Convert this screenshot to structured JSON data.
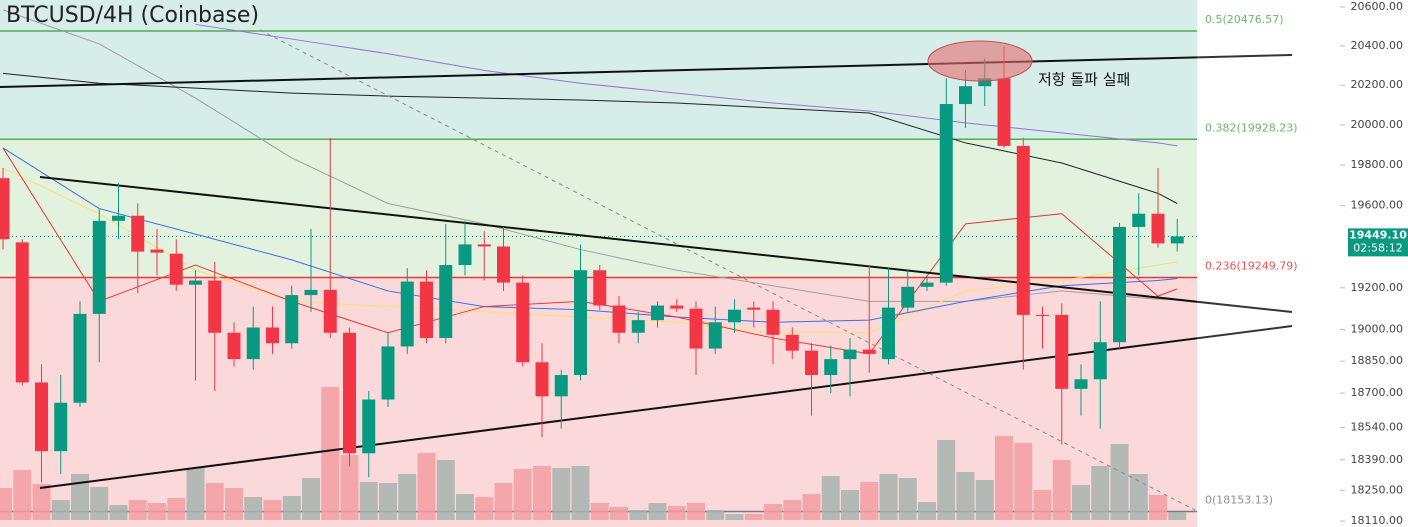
{
  "chart_data": {
    "type": "candlestick",
    "title": "BTCUSD/4H (Coinbase)",
    "annotation": "저항 돌파 실패",
    "log": true,
    "ylim": [
      18083,
      20636
    ],
    "yticks": [
      {
        "value": 20600,
        "label": "20600.00"
      },
      {
        "value": 20400,
        "label": "20400.00"
      },
      {
        "value": 20200,
        "label": "20200.00"
      },
      {
        "value": 20000,
        "label": "20000.00"
      },
      {
        "value": 19800,
        "label": "19800.00"
      },
      {
        "value": 19600,
        "label": "19600.00"
      },
      {
        "value": 19200,
        "label": "19200.00"
      },
      {
        "value": 19000,
        "label": "19000.00"
      },
      {
        "value": 18850,
        "label": "18850.00"
      },
      {
        "value": 18700,
        "label": "18700.00"
      },
      {
        "value": 18540,
        "label": "18540.00"
      },
      {
        "value": 18390,
        "label": "18390.00"
      },
      {
        "value": 18250,
        "label": "18250.00"
      },
      {
        "value": 18110,
        "label": "18110.00"
      }
    ],
    "up_color": "#089981",
    "down_color": "#f23645",
    "last_price": {
      "value": 19449.1,
      "label": "19449.10"
    },
    "countdown": "02:58:12",
    "fib_levels": [
      {
        "value": 20476.57,
        "label": "0.5(20476.57)",
        "color": "#4caf50",
        "band": "#d6ede9"
      },
      {
        "value": 19928.23,
        "label": "0.382(19928.23)",
        "color": "#4caf50",
        "band": "#e3f2df"
      },
      {
        "value": 19249.79,
        "label": "0.236(19249.79)",
        "color": "#e53935",
        "band": "#e3f2df"
      },
      {
        "value": 18153.13,
        "label": "0(18153.13)",
        "color": "#787b86",
        "band": "#fbd9da"
      }
    ],
    "open": [
      19735,
      19420,
      18750,
      18430,
      18655,
      19075,
      19525,
      19550,
      19385,
      19365,
      19215,
      19235,
      18985,
      18860,
      19010,
      18935,
      19165,
      19190,
      18985,
      18420,
      18670,
      18920,
      19230,
      18960,
      19310,
      19410,
      19400,
      19225,
      18845,
      18685,
      18785,
      19285,
      19115,
      18985,
      19045,
      19115,
      19100,
      18910,
      19035,
      19105,
      19095,
      18975,
      18900,
      18785,
      18860,
      18905,
      18860,
      19105,
      19205,
      19225,
      20105,
      20195,
      20235,
      19895,
      19070,
      19070,
      18720,
      18765,
      18940,
      19495,
      19560,
      19415
    ],
    "high": [
      19785,
      19435,
      18835,
      18785,
      19135,
      19585,
      19710,
      19610,
      19485,
      19435,
      19285,
      19325,
      19035,
      19110,
      19110,
      19210,
      19485,
      19935,
      19010,
      18710,
      18985,
      19295,
      19285,
      19510,
      19525,
      19475,
      19495,
      19260,
      18935,
      18810,
      19410,
      19310,
      19160,
      19085,
      19135,
      19145,
      19135,
      19110,
      19145,
      19135,
      19135,
      19010,
      18935,
      18925,
      18960,
      19310,
      19295,
      19285,
      19260,
      20235,
      20275,
      20335,
      20395,
      19935,
      19110,
      19125,
      18835,
      19135,
      19515,
      19660,
      19785,
      19535
    ],
    "low": [
      19385,
      18735,
      18285,
      18325,
      18635,
      18845,
      19435,
      19175,
      19260,
      19185,
      18760,
      18710,
      18825,
      18810,
      18885,
      18910,
      19085,
      18960,
      18360,
      18310,
      18635,
      18885,
      18935,
      18935,
      19260,
      19235,
      19185,
      18825,
      18495,
      18535,
      18760,
      19095,
      18935,
      18935,
      19010,
      19085,
      18785,
      18885,
      18985,
      19010,
      18835,
      18860,
      18595,
      18700,
      18685,
      18795,
      18835,
      19085,
      19185,
      19210,
      19985,
      20095,
      19885,
      18810,
      18910,
      18460,
      18595,
      18535,
      18910,
      19260,
      19395,
      19375
    ],
    "close": [
      19435,
      18750,
      18430,
      18655,
      19075,
      19525,
      19550,
      19375,
      19370,
      19215,
      19235,
      18985,
      18860,
      19010,
      18935,
      19165,
      19190,
      18985,
      18420,
      18670,
      18920,
      19230,
      18960,
      19310,
      19410,
      19400,
      19225,
      18845,
      18685,
      18785,
      19285,
      19115,
      18985,
      19045,
      19115,
      19100,
      18910,
      19035,
      19095,
      19095,
      18975,
      18900,
      18785,
      18860,
      18905,
      18885,
      19105,
      19205,
      19225,
      20105,
      20195,
      20235,
      19895,
      19070,
      19065,
      18720,
      18765,
      18940,
      19495,
      19560,
      19415,
      19449.1
    ],
    "volume": [
      32,
      50,
      36,
      20,
      46,
      33,
      15,
      20,
      17,
      22,
      52,
      37,
      32,
      23,
      20,
      24,
      42,
      133,
      65,
      38,
      37,
      46,
      67,
      60,
      26,
      23,
      37,
      51,
      54,
      52,
      54,
      17,
      13,
      10,
      17,
      14,
      17,
      10,
      6,
      6,
      16,
      20,
      26,
      44,
      30,
      38,
      46,
      42,
      18,
      80,
      48,
      40,
      84,
      77,
      30,
      60,
      35,
      54,
      76,
      46,
      25,
      8
    ],
    "volume_colors": {
      "up": "#a7b3af",
      "down": "#f29ca1"
    },
    "moving_averages": [
      {
        "color": "#9e9e9e",
        "x": [
          0,
          5,
          10,
          15,
          20,
          25,
          30,
          35,
          40,
          45,
          50,
          55,
          60,
          61
        ],
        "values": [
          20585,
          20410,
          20135,
          19835,
          19610,
          19510,
          19385,
          19285,
          19210,
          19135,
          19135,
          19185,
          19145,
          19145
        ]
      },
      {
        "color": "#9c6fd6",
        "x": [
          10,
          15,
          20,
          25,
          30,
          35,
          40,
          45,
          50,
          55,
          60,
          61
        ],
        "values": [
          20510,
          20435,
          20360,
          20275,
          20210,
          20160,
          20110,
          20070,
          20010,
          19960,
          19910,
          19895
        ]
      },
      {
        "color": "#222222",
        "x": [
          0,
          5,
          10,
          15,
          20,
          25,
          30,
          35,
          40,
          45,
          50,
          55,
          60,
          61
        ],
        "values": [
          20260,
          20210,
          20185,
          20160,
          20145,
          20135,
          20125,
          20110,
          20085,
          20060,
          19910,
          19810,
          19660,
          19610
        ]
      },
      {
        "color": "#f5e46a",
        "x": [
          0,
          5,
          10,
          15,
          20,
          25,
          30,
          35,
          40,
          45,
          50,
          55,
          60,
          61
        ],
        "values": [
          19785,
          19560,
          19285,
          19135,
          19110,
          19085,
          19060,
          19035,
          18985,
          18985,
          19185,
          19235,
          19310,
          19325
        ]
      },
      {
        "color": "#3b6fe0",
        "x": [
          0,
          5,
          10,
          15,
          20,
          25,
          30,
          35,
          40,
          45,
          50,
          55,
          60,
          61
        ],
        "values": [
          19885,
          19585,
          19460,
          19335,
          19185,
          19110,
          19095,
          19060,
          19035,
          19045,
          19135,
          19210,
          19235,
          19245
        ]
      },
      {
        "color": "#e53935",
        "x": [
          0,
          5,
          10,
          15,
          20,
          25,
          30,
          35,
          40,
          45,
          50,
          55,
          60,
          61
        ],
        "values": [
          19885,
          19135,
          19310,
          19135,
          18985,
          19110,
          19135,
          19060,
          18960,
          18885,
          19510,
          19560,
          19160,
          19195
        ]
      }
    ]
  }
}
